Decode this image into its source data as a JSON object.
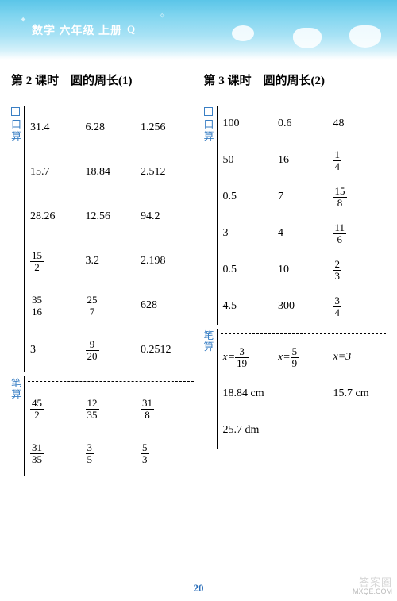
{
  "header": {
    "title": "数学 六年级 上册",
    "badge": "Q"
  },
  "page_number": "20",
  "watermark": {
    "line1": "答案圈",
    "line2": "MXQE.COM"
  },
  "labels": {
    "kousuan": "口算",
    "bisuan": "笔算"
  },
  "colors": {
    "header_gradient_top": "#5bc5e8",
    "header_gradient_bottom": "#ffffff",
    "label_color": "#3a7fc4",
    "page_num_color": "#2a6db8",
    "text_color": "#000000"
  },
  "typography": {
    "title_fontsize_pt": 11,
    "body_fontsize_pt": 10.5,
    "font_family": "SimSun"
  },
  "left": {
    "title": "第 2 课时　圆的周长(1)",
    "kousuan_rows": [
      [
        "31.4",
        "6.28",
        "1.256"
      ],
      [
        "15.7",
        "18.84",
        "2.512"
      ],
      [
        "28.26",
        "12.56",
        "94.2"
      ],
      [
        {
          "frac": [
            "15",
            "2"
          ]
        },
        "3.2",
        "2.198"
      ],
      [
        {
          "frac": [
            "35",
            "16"
          ]
        },
        {
          "frac": [
            "25",
            "7"
          ]
        },
        "628"
      ],
      [
        "3",
        {
          "frac": [
            "9",
            "20"
          ]
        },
        "0.2512"
      ]
    ],
    "bisuan_rows": [
      [
        {
          "frac": [
            "45",
            "2"
          ]
        },
        {
          "frac": [
            "12",
            "35"
          ]
        },
        {
          "frac": [
            "31",
            "8"
          ]
        }
      ],
      [
        {
          "frac": [
            "31",
            "35"
          ]
        },
        {
          "frac": [
            "3",
            "5"
          ]
        },
        {
          "frac": [
            "5",
            "3"
          ]
        }
      ]
    ]
  },
  "right": {
    "title": "第 3 课时　圆的周长(2)",
    "kousuan_rows": [
      [
        "100",
        "0.6",
        "48"
      ],
      [
        "50",
        "16",
        {
          "frac": [
            "1",
            "4"
          ]
        }
      ],
      [
        "0.5",
        "7",
        {
          "frac": [
            "15",
            "8"
          ]
        }
      ],
      [
        "3",
        "4",
        {
          "frac": [
            "11",
            "6"
          ]
        }
      ],
      [
        "0.5",
        "10",
        {
          "frac": [
            "2",
            "3"
          ]
        }
      ],
      [
        "4.5",
        "300",
        {
          "frac": [
            "3",
            "4"
          ]
        }
      ]
    ],
    "bisuan_rows": [
      [
        {
          "eq": "x=",
          "frac": [
            "3",
            "19"
          ]
        },
        {
          "eq": "x=",
          "frac": [
            "5",
            "9"
          ]
        },
        {
          "eq": "x=3"
        }
      ],
      [
        "18.84 cm",
        "",
        "15.7 cm"
      ],
      [
        "25.7 dm",
        "",
        ""
      ]
    ]
  }
}
